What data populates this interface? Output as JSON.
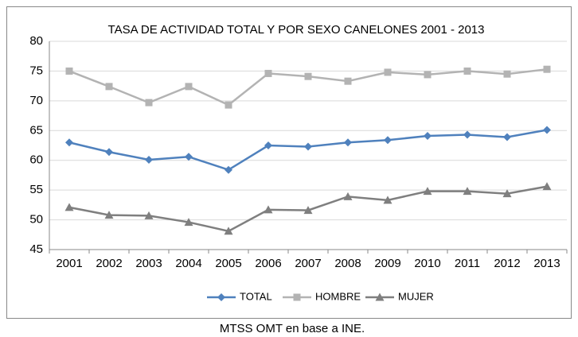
{
  "chart_data": {
    "type": "line",
    "title": "TASA DE ACTIVIDAD TOTAL Y POR SEXO CANELONES 2001 - 2013",
    "source": "MTSS OMT en base a INE.",
    "categories": [
      "2001",
      "2002",
      "2003",
      "2004",
      "2005",
      "2006",
      "2007",
      "2008",
      "2009",
      "2010",
      "2011",
      "2012",
      "2013"
    ],
    "series": [
      {
        "name": "TOTAL",
        "color": "#4f81bd",
        "marker": "diamond",
        "values": [
          63.0,
          61.4,
          60.1,
          60.6,
          58.4,
          62.5,
          62.3,
          63.0,
          63.4,
          64.1,
          64.3,
          63.9,
          65.1
        ]
      },
      {
        "name": "HOMBRE",
        "color": "#b3b3b3",
        "marker": "square",
        "values": [
          75.0,
          72.4,
          69.7,
          72.4,
          69.3,
          74.6,
          74.1,
          73.3,
          74.8,
          74.4,
          75.0,
          74.5,
          75.3
        ]
      },
      {
        "name": "MUJER",
        "color": "#7f7f7f",
        "marker": "triangle",
        "values": [
          52.1,
          50.8,
          50.7,
          49.6,
          48.1,
          51.7,
          51.6,
          53.9,
          53.3,
          54.8,
          54.8,
          54.4,
          55.6
        ]
      }
    ],
    "ylim": [
      45,
      80
    ],
    "yticks": [
      45,
      50,
      55,
      60,
      65,
      70,
      75,
      80
    ],
    "grid": true,
    "legend": "bottom"
  }
}
